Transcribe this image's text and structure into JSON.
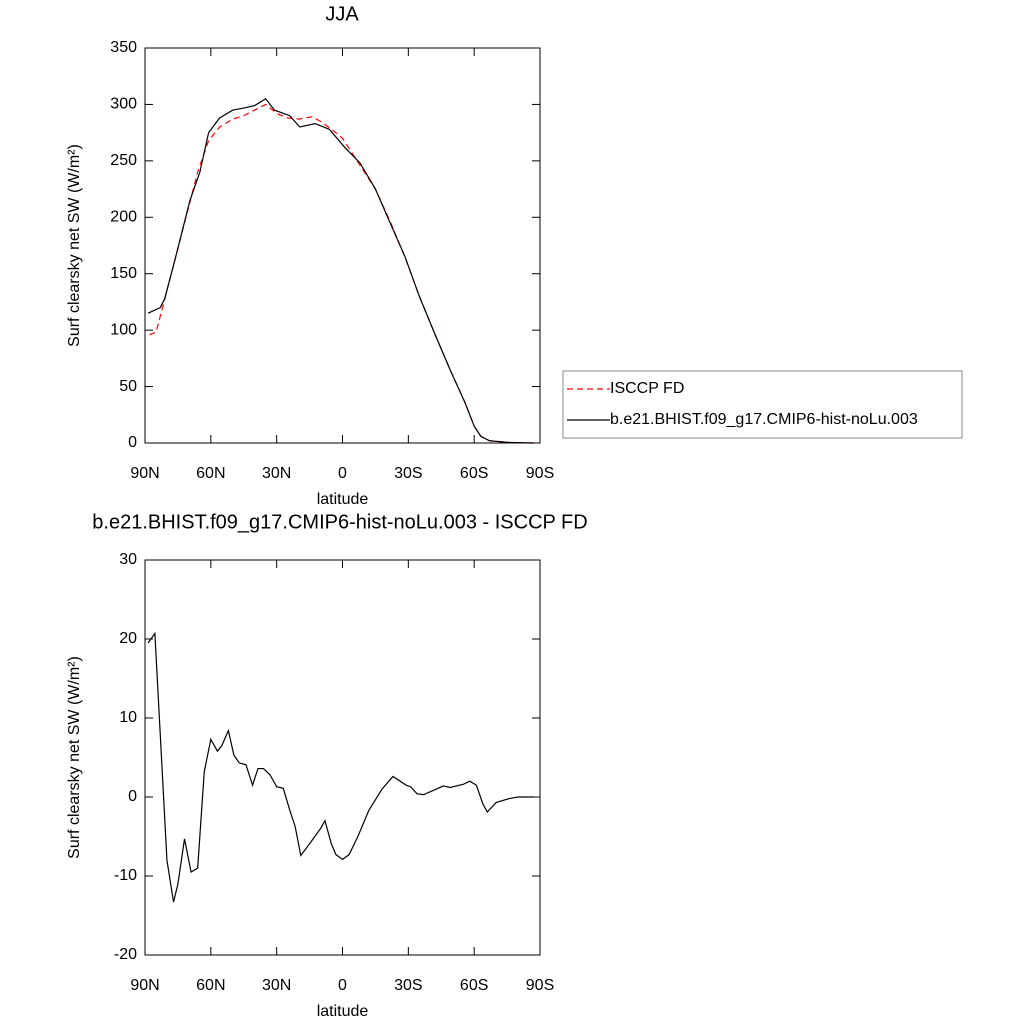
{
  "chart_data": [
    {
      "type": "line",
      "title": "JJA",
      "xlabel": "latitude",
      "ylabel": "Surf clearsky net SW (W/m²)",
      "xlim": [
        90,
        -90
      ],
      "xticks": [
        {
          "value": 90,
          "label": "90N"
        },
        {
          "value": 60,
          "label": "60N"
        },
        {
          "value": 30,
          "label": "30N"
        },
        0,
        {
          "value": -30,
          "label": "30S"
        },
        {
          "value": -60,
          "label": "60S"
        },
        {
          "value": -90,
          "label": "90S"
        }
      ],
      "ylim": [
        0,
        350
      ],
      "yticks": [
        0,
        50,
        100,
        150,
        200,
        250,
        300,
        350
      ],
      "legend": "outside-right",
      "series": [
        {
          "name": "ISCCP FD",
          "color": "#ff0000",
          "line_style": "dashed",
          "x": [
            88,
            85,
            82,
            78,
            72,
            66,
            61,
            56,
            50,
            45,
            40,
            35,
            30,
            25,
            20,
            14,
            10,
            5,
            0,
            -5,
            -10,
            -15,
            -22,
            -29,
            -35,
            -42,
            -49,
            -56,
            -60,
            -63,
            -67,
            -76,
            -87
          ],
          "values": [
            96,
            98,
            120,
            150,
            195,
            240,
            268,
            280,
            287,
            290,
            295,
            300,
            292,
            288,
            287,
            289,
            285,
            278,
            270,
            255,
            240,
            225,
            195,
            162,
            130,
            97,
            65,
            35,
            15,
            6,
            2,
            0.5,
            0
          ]
        },
        {
          "name": "b.e21.BHIST.f09_g17.CMIP6-hist-noLu.003",
          "color": "#000000",
          "line_style": "solid",
          "x": [
            88.6,
            83,
            81,
            76,
            69.5,
            65,
            61,
            56,
            50,
            44.5,
            40,
            35,
            31,
            24,
            19.5,
            12.5,
            6,
            -1,
            -8,
            -15,
            -21.7,
            -28.5,
            -35,
            -42,
            -49,
            -56,
            -60,
            -63,
            -67,
            -76,
            -87
          ],
          "values": [
            115,
            120,
            128,
            165,
            215,
            240,
            275,
            288,
            295,
            297,
            299,
            305,
            295,
            290,
            280,
            283,
            278,
            262,
            248,
            225,
            195,
            165,
            130,
            97,
            65,
            35,
            15,
            6,
            2,
            0.5,
            0
          ]
        }
      ]
    },
    {
      "type": "line",
      "title": "b.e21.BHIST.f09_g17.CMIP6-hist-noLu.003 - ISCCP FD",
      "xlabel": "latitude",
      "ylabel": "Surf clearsky net SW (W/m²)",
      "xlim": [
        90,
        -90
      ],
      "xticks": [
        {
          "value": 90,
          "label": "90N"
        },
        {
          "value": 60,
          "label": "60N"
        },
        {
          "value": 30,
          "label": "30N"
        },
        0,
        {
          "value": -30,
          "label": "30S"
        },
        {
          "value": -60,
          "label": "60S"
        },
        {
          "value": -90,
          "label": "90S"
        }
      ],
      "ylim": [
        -20,
        30
      ],
      "yticks": [
        -20,
        -10,
        0,
        10,
        20,
        30
      ],
      "series": [
        {
          "color": "#000000",
          "line_style": "solid",
          "x": [
            88.6,
            85.5,
            80,
            77,
            75,
            72,
            69,
            66,
            63,
            60,
            57,
            55,
            52,
            49.5,
            47,
            44,
            41,
            38.5,
            36,
            33,
            30,
            27,
            24,
            21.6,
            19,
            16,
            10,
            8,
            5,
            3,
            0,
            -3,
            -7,
            -12,
            -18,
            -23,
            -29,
            -31,
            -34,
            -37,
            -46,
            -49,
            -55,
            -58,
            -61,
            -64,
            -66,
            -70,
            -76,
            -80,
            -87
          ],
          "values": [
            19.5,
            20.7,
            -8,
            -13.3,
            -11,
            -5.3,
            -9.5,
            -9,
            3.2,
            7.3,
            5.8,
            6.5,
            8.4,
            5.3,
            4.3,
            4.1,
            1.5,
            3.6,
            3.6,
            2.8,
            1.3,
            1.1,
            -1.7,
            -3.7,
            -7.4,
            -6.3,
            -4,
            -3,
            -6,
            -7.3,
            -7.9,
            -7.3,
            -5,
            -1.7,
            1,
            2.6,
            1.5,
            1.3,
            0.4,
            0.3,
            1.4,
            1.2,
            1.6,
            2,
            1.5,
            -0.9,
            -1.9,
            -0.7,
            -0.2,
            0,
            0
          ]
        }
      ]
    }
  ]
}
